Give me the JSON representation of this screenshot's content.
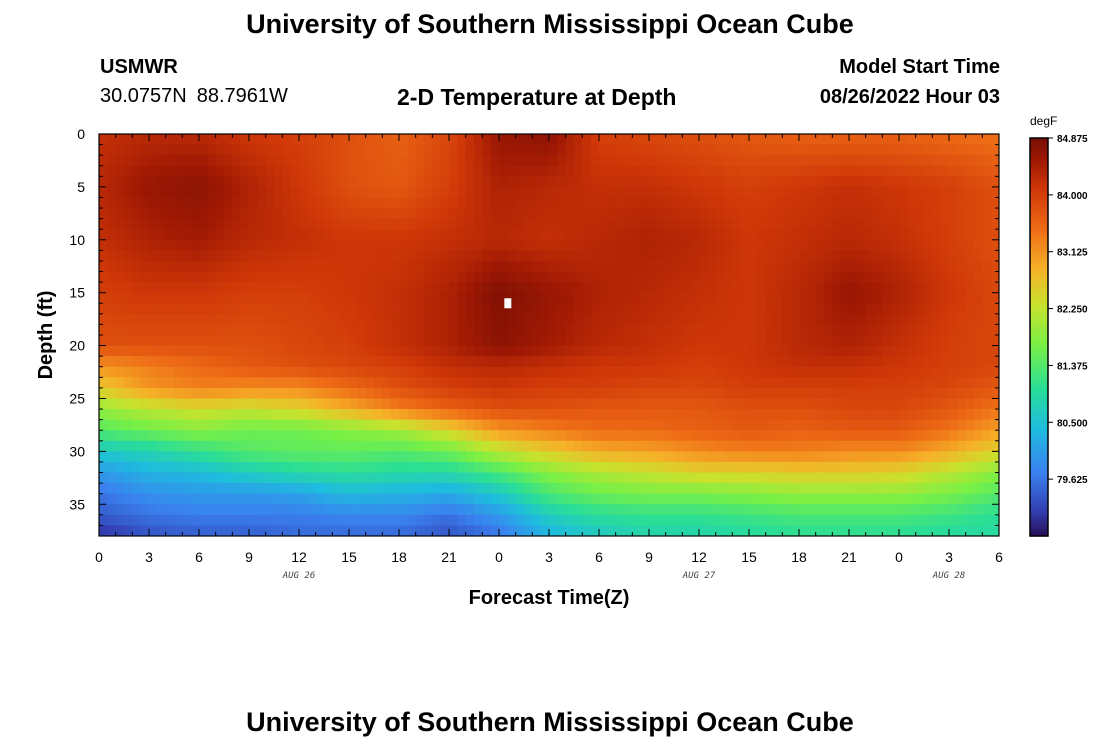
{
  "header": {
    "title": "University of Southern Mississippi Ocean Cube",
    "station": "USMWR",
    "latitude": "30.0757N",
    "longitude": "88.7961W",
    "plot_title": "2-D Temperature at Depth",
    "start_label": "Model Start Time",
    "start_time": "08/26/2022 Hour 03"
  },
  "footer": {
    "title": "University of Southern Mississippi Ocean Cube"
  },
  "chart_data": {
    "type": "heatmap",
    "title": "2-D Temperature at Depth",
    "xlabel": "Forecast Time(Z)",
    "ylabel": "Depth (ft)",
    "x_unit": "forecast hours from 08/26 00Z",
    "xlim": [
      0,
      54
    ],
    "ylim": [
      0,
      38
    ],
    "y_inverted": true,
    "x_ticks": [
      {
        "hour": 0,
        "label": "0"
      },
      {
        "hour": 3,
        "label": "3"
      },
      {
        "hour": 6,
        "label": "6"
      },
      {
        "hour": 9,
        "label": "9"
      },
      {
        "hour": 12,
        "label": "12"
      },
      {
        "hour": 15,
        "label": "15"
      },
      {
        "hour": 18,
        "label": "18"
      },
      {
        "hour": 21,
        "label": "21"
      },
      {
        "hour": 24,
        "label": "0"
      },
      {
        "hour": 27,
        "label": "3"
      },
      {
        "hour": 30,
        "label": "6"
      },
      {
        "hour": 33,
        "label": "9"
      },
      {
        "hour": 36,
        "label": "12"
      },
      {
        "hour": 39,
        "label": "15"
      },
      {
        "hour": 42,
        "label": "18"
      },
      {
        "hour": 45,
        "label": "21"
      },
      {
        "hour": 48,
        "label": "0"
      },
      {
        "hour": 51,
        "label": "3"
      },
      {
        "hour": 54,
        "label": "6"
      }
    ],
    "date_labels": [
      {
        "hour": 12,
        "label": "AUG 26"
      },
      {
        "hour": 36,
        "label": "AUG 27"
      },
      {
        "hour": 51,
        "label": "AUG 28"
      }
    ],
    "y_ticks": [
      0,
      5,
      10,
      15,
      20,
      25,
      30,
      35
    ],
    "colorbar": {
      "unit": "degF",
      "min": 78.75,
      "max": 84.875,
      "labels": [
        "84.875",
        "84.000",
        "83.125",
        "82.250",
        "81.375",
        "80.500",
        "79.625"
      ]
    },
    "depths_ft": [
      0,
      5,
      10,
      15,
      20,
      22,
      24,
      26,
      28,
      30,
      32,
      34,
      36,
      38
    ],
    "times_hr": [
      0,
      3,
      6,
      9,
      12,
      15,
      18,
      21,
      24,
      27,
      30,
      33,
      36,
      39,
      42,
      45,
      48,
      51,
      54
    ],
    "temperature_degF": [
      [
        84.2,
        84.3,
        84.3,
        84.1,
        84.0,
        83.8,
        83.6,
        83.9,
        84.6,
        84.7,
        84.0,
        83.9,
        83.8,
        83.7,
        83.6,
        83.6,
        83.6,
        83.5,
        83.4
      ],
      [
        84.3,
        84.6,
        84.7,
        84.4,
        84.1,
        83.8,
        83.7,
        84.0,
        84.4,
        84.3,
        84.2,
        84.2,
        84.1,
        84.0,
        84.1,
        84.2,
        84.1,
        84.0,
        83.8
      ],
      [
        84.2,
        84.4,
        84.5,
        84.3,
        84.2,
        84.1,
        84.1,
        84.2,
        84.3,
        84.2,
        84.3,
        84.4,
        84.3,
        84.1,
        84.2,
        84.3,
        84.2,
        84.0,
        83.8
      ],
      [
        84.0,
        84.1,
        84.1,
        84.0,
        84.0,
        84.1,
        84.2,
        84.4,
        84.8,
        84.6,
        84.4,
        84.3,
        84.2,
        84.1,
        84.3,
        84.6,
        84.4,
        84.1,
        83.9
      ],
      [
        83.8,
        83.8,
        83.8,
        83.8,
        83.9,
        84.0,
        84.2,
        84.4,
        84.7,
        84.5,
        84.3,
        84.2,
        84.1,
        84.1,
        84.3,
        84.4,
        84.2,
        84.0,
        83.9
      ],
      [
        83.1,
        83.3,
        83.5,
        83.7,
        83.8,
        83.9,
        84.0,
        84.2,
        84.3,
        84.2,
        84.1,
        84.1,
        84.0,
        84.1,
        84.2,
        84.2,
        84.1,
        84.0,
        83.9
      ],
      [
        82.6,
        83.1,
        83.3,
        83.2,
        83.2,
        83.5,
        83.8,
        84.0,
        84.1,
        84.0,
        84.0,
        83.9,
        83.9,
        84.0,
        84.0,
        84.0,
        84.0,
        83.9,
        83.7
      ],
      [
        81.9,
        82.2,
        82.4,
        82.3,
        82.5,
        82.9,
        83.3,
        83.6,
        83.8,
        83.8,
        83.7,
        83.7,
        83.7,
        83.8,
        83.8,
        83.9,
        83.9,
        83.7,
        83.4
      ],
      [
        81.4,
        81.6,
        81.8,
        81.6,
        81.6,
        81.8,
        82.0,
        82.5,
        83.1,
        83.3,
        83.5,
        83.5,
        83.6,
        83.7,
        83.6,
        83.7,
        83.7,
        83.4,
        83.0
      ],
      [
        80.6,
        80.8,
        81.1,
        81.4,
        81.5,
        81.5,
        81.4,
        81.6,
        82.2,
        82.6,
        82.9,
        83.0,
        83.2,
        83.3,
        83.3,
        83.2,
        83.2,
        82.9,
        82.5
      ],
      [
        80.0,
        80.3,
        80.4,
        80.7,
        80.9,
        81.0,
        80.9,
        80.9,
        81.3,
        81.8,
        82.1,
        82.3,
        82.5,
        82.5,
        82.6,
        82.6,
        82.5,
        82.2,
        81.8
      ],
      [
        79.6,
        79.9,
        80.0,
        80.0,
        80.1,
        80.4,
        80.3,
        80.2,
        80.6,
        81.3,
        81.6,
        81.7,
        81.7,
        81.8,
        81.9,
        81.9,
        81.9,
        81.7,
        81.4
      ],
      [
        79.4,
        79.6,
        79.7,
        79.7,
        79.7,
        79.8,
        79.8,
        79.6,
        80.0,
        80.7,
        81.0,
        81.1,
        81.1,
        81.2,
        81.3,
        81.3,
        81.3,
        81.2,
        81.0
      ],
      [
        79.0,
        79.3,
        79.4,
        79.4,
        79.5,
        79.5,
        79.5,
        79.3,
        79.6,
        80.3,
        80.6,
        80.8,
        80.8,
        80.9,
        81.0,
        81.0,
        81.0,
        80.9,
        80.9
      ]
    ],
    "annotations": [
      {
        "type": "white-square-marker",
        "hour": 24.5,
        "depth_ft": 16
      }
    ]
  }
}
